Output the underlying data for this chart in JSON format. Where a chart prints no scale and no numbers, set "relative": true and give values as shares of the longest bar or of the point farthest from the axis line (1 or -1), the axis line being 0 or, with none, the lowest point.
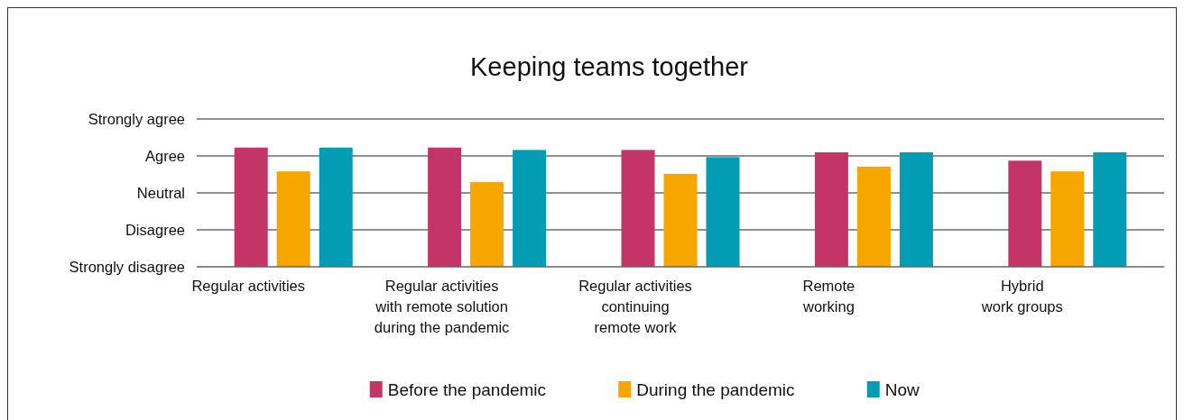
{
  "chart_data": {
    "type": "bar",
    "title": "Keeping teams together",
    "relative": true,
    "categories": [
      "Regular activities",
      "Regular activities\nwith remote solution\nduring the pandemic",
      "Regular activities\ncontinuing\nremote work",
      "Remote\nworking",
      "Hybrid\nwork groups"
    ],
    "series": [
      {
        "name": "Before the pandemic",
        "color": "#c43567",
        "values": [
          1,
          1,
          0.98,
          0.96,
          0.89
        ]
      },
      {
        "name": "During the pandemic",
        "color": "#f7a600",
        "values": [
          0.8,
          0.71,
          0.78,
          0.84,
          0.8
        ]
      },
      {
        "name": "Now",
        "color": "#029db4",
        "values": [
          1,
          0.98,
          0.92,
          0.96,
          0.96
        ]
      }
    ],
    "ref_lines": [
      {
        "axis": "y",
        "value": 1.24,
        "label": "Strongly agree",
        "color": "#222222"
      },
      {
        "axis": "y",
        "value": 0.93,
        "label": "Agree",
        "color": "#222222"
      },
      {
        "axis": "y",
        "value": 0.62,
        "label": "Neutral",
        "color": "#222222"
      },
      {
        "axis": "y",
        "value": 0.31,
        "label": "Disagree",
        "color": "#222222"
      }
    ],
    "annotations": [
      "Strongly disagree"
    ],
    "legend": "bottom"
  }
}
